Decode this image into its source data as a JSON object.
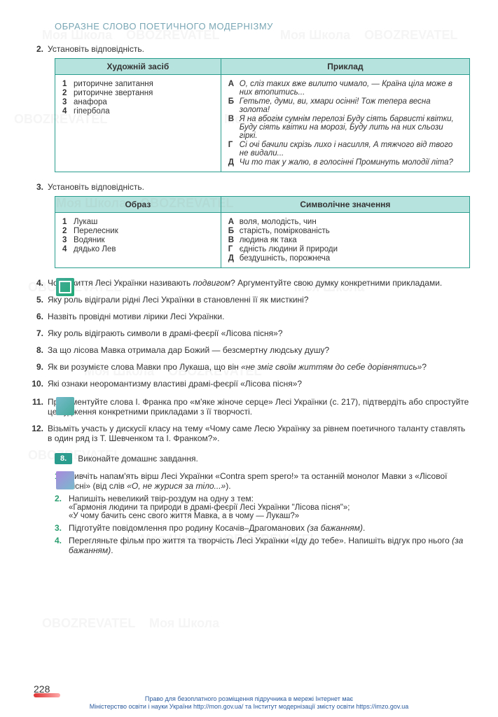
{
  "header": {
    "title": "ОБРАЗНЕ СЛОВО ПОЕТИЧНОГО МОДЕРНІЗМУ"
  },
  "task2": {
    "num": "2.",
    "text": "Установiть вiдповiднiсть.",
    "table": {
      "header_left": "Художнiй засiб",
      "header_right": "Приклад",
      "left": [
        {
          "n": "1",
          "t": "риторичне запитання"
        },
        {
          "n": "2",
          "t": "риторичне звертання"
        },
        {
          "n": "3",
          "t": "анафора"
        },
        {
          "n": "4",
          "t": "гiпербола"
        }
      ],
      "right": [
        {
          "l": "А",
          "t": "О, слiз таких вже вилито чимало, — Країна цiла може в них втопитись..."
        },
        {
          "l": "Б",
          "t": "Гетьте, думи, ви, хмари осiннi! Тож тепера весна золота!"
        },
        {
          "l": "В",
          "t": "Я на вбогiм сумнiм перелозi Буду сiять барвистi квiтки, Буду сiять квiтки на морозi, Буду лить на них сльози гiркi."
        },
        {
          "l": "Г",
          "t": "Сi очi бачили скрiзь лихо i насилля, А тяжчого вiд твого не видали..."
        },
        {
          "l": "Д",
          "t": "Чи то так у жалю, в голосiннi Проминуть молодiї лiта?"
        }
      ]
    }
  },
  "task3": {
    "num": "3.",
    "text": "Установiть вiдповiднiсть.",
    "table": {
      "header_left": "Образ",
      "header_right": "Символiчне значення",
      "left": [
        {
          "n": "1",
          "t": "Лукаш"
        },
        {
          "n": "2",
          "t": "Перелесник"
        },
        {
          "n": "3",
          "t": "Водяник"
        },
        {
          "n": "4",
          "t": "дядько Лев"
        }
      ],
      "right": [
        {
          "l": "А",
          "t": "воля, молодiсть, чин"
        },
        {
          "l": "Б",
          "t": "старiсть, помiркованiсть"
        },
        {
          "l": "В",
          "t": "людина як така"
        },
        {
          "l": "Г",
          "t": "єднiсть людини й природи"
        },
        {
          "l": "Д",
          "t": "бездушнiсть, порожнеча"
        }
      ]
    }
  },
  "tasks_4_10": [
    {
      "n": "4.",
      "t": "Чому життя Лесi Українки називають подвигом? Аргументуйте свою думку конкретними прикладами.",
      "italic_word": "подвигом"
    },
    {
      "n": "5.",
      "t": "Яку роль вiдiграли рiднi Лесi Українки в становленнi її як мисткинi?"
    },
    {
      "n": "6.",
      "t": "Назвiть провiднi мотиви лiрики Лесi Українки."
    },
    {
      "n": "7.",
      "t": "Яку роль вiдiграють символи в драмi-феєрiї «Лiсова пiсня»?"
    },
    {
      "n": "8.",
      "t": "За що лiсова Мавка отримала дар Божий — безсмертну людську душу?"
    },
    {
      "n": "9.",
      "t": "Як ви розумiєте слова Мавки про Лукаша, що вiн «не змiг своїм життям до себе дорiвнятись»?",
      "italic_part": "«не змiг своїм життям до себе дорiвнятись»"
    },
    {
      "n": "10.",
      "t": "Якi ознаки неоромантизму властивi драмi-феєрiї «Лiсова пiсня»?"
    }
  ],
  "tasks_11_12": [
    {
      "n": "11.",
      "t": "Прокоментуйте слова I. Франка про «м'яке жiноче серце» Лесi Українки (с. 217), пiдтвердiть або спростуйте це судження конкретними прикладами з її творчостi."
    },
    {
      "n": "12.",
      "t": "Вiзьмiть участь у дискусiї класу на тему «Чому саме Лесю Українку за рiвнем поетичного таланту ставлять в один ряд iз Т. Шевченком та I. Франком?»."
    }
  ],
  "homework": {
    "pill": "8.",
    "label": "Виконайте домашнє завдання.",
    "items": [
      {
        "n": "1.",
        "lines": [
          "Вивчiть напам'ять вiрш Лесi Українки «Contra spem spero!» та останнiй монолог Мавки з «Лiсової пiснi» (вiд слiв «О, не журися за тiло...»)."
        ]
      },
      {
        "n": "2.",
        "lines": [
          "Напишiть невеликий твiр-роздум на одну з тем:",
          "«Гармонiя людини та природи в драмi-феєрiї Лесi Українки \"Лiсова пiсня\"»;",
          "«У чому бачить сенс свого життя Мавка, а в чому — Лукаш?»"
        ]
      },
      {
        "n": "3.",
        "lines": [
          "Пiдготуйте повiдомлення про родину Косачiв–Драгоманових (за бажанням)."
        ]
      },
      {
        "n": "4.",
        "lines": [
          "Перегляньте фiльм про життя та творчiсть Лесi Українки «Iду до тебе». Напишiть вiдгук про нього (за бажанням)."
        ]
      }
    ]
  },
  "page_number": "228",
  "footer": {
    "line1": "Право для безоплатного розмiщення пiдручника в мережi Iнтернет має",
    "line2": "Мiнiстерство освiти i науки України http://mon.gov.ua/ та Iнститут модернiзацiї змiсту освiти https://imzo.gov.ua"
  },
  "watermarks": [
    "Моя Школа",
    "OBOZREVATEL"
  ]
}
